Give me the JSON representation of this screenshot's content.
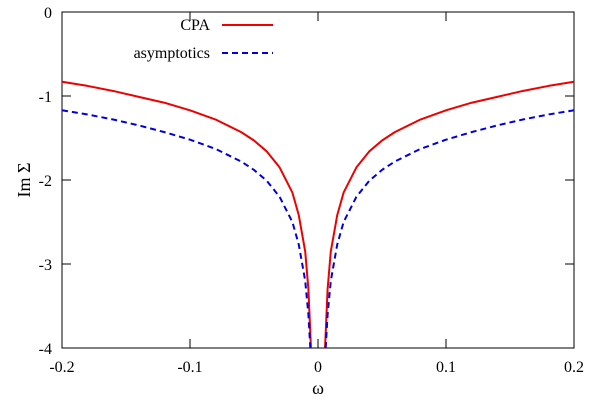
{
  "chart_data": {
    "type": "line",
    "xlabel": "ω",
    "ylabel": "Im Σ",
    "xlim": [
      -0.2,
      0.2
    ],
    "ylim": [
      -4,
      0
    ],
    "xticks": [
      -0.2,
      -0.1,
      0,
      0.1,
      0.2
    ],
    "xtick_labels": [
      "-0.2",
      "-0.1",
      "0",
      "0.1",
      "0.2"
    ],
    "yticks": [
      0,
      -1,
      -2,
      -3,
      -4
    ],
    "ytick_labels": [
      "0",
      "-1",
      "-2",
      "-3",
      "-4"
    ],
    "grid": false,
    "legend_position": "top-center",
    "series": [
      {
        "name": "CPA",
        "color": "#ee0000",
        "dash": "solid",
        "x": [
          -0.2,
          -0.18,
          -0.16,
          -0.14,
          -0.12,
          -0.1,
          -0.08,
          -0.06,
          -0.05,
          -0.04,
          -0.03,
          -0.02,
          -0.015,
          -0.01,
          -0.0075,
          -0.0055,
          0.0055,
          0.0075,
          0.01,
          0.015,
          0.02,
          0.03,
          0.04,
          0.05,
          0.06,
          0.08,
          0.1,
          0.12,
          0.14,
          0.16,
          0.18,
          0.2
        ],
        "y": [
          -0.83,
          -0.88,
          -0.94,
          -1.01,
          -1.08,
          -1.17,
          -1.28,
          -1.43,
          -1.53,
          -1.66,
          -1.85,
          -2.15,
          -2.42,
          -2.85,
          -3.3,
          -4.0,
          -4.0,
          -3.3,
          -2.85,
          -2.42,
          -2.15,
          -1.85,
          -1.66,
          -1.53,
          -1.43,
          -1.28,
          -1.17,
          -1.08,
          -1.01,
          -0.94,
          -0.88,
          -0.83
        ]
      },
      {
        "name": "asymptotics",
        "color": "#0000dd",
        "dash": "dashed",
        "x": [
          -0.2,
          -0.18,
          -0.16,
          -0.14,
          -0.12,
          -0.1,
          -0.08,
          -0.06,
          -0.05,
          -0.04,
          -0.03,
          -0.02,
          -0.015,
          -0.01,
          -0.0075,
          -0.006,
          0.006,
          0.0075,
          0.01,
          0.015,
          0.02,
          0.03,
          0.04,
          0.05,
          0.06,
          0.08,
          0.1,
          0.12,
          0.14,
          0.16,
          0.18,
          0.2
        ],
        "y": [
          -1.17,
          -1.22,
          -1.28,
          -1.35,
          -1.43,
          -1.52,
          -1.63,
          -1.78,
          -1.88,
          -2.01,
          -2.2,
          -2.5,
          -2.77,
          -3.2,
          -3.6,
          -4.0,
          -4.0,
          -3.6,
          -3.2,
          -2.77,
          -2.5,
          -2.2,
          -2.01,
          -1.88,
          -1.78,
          -1.63,
          -1.52,
          -1.43,
          -1.35,
          -1.28,
          -1.22,
          -1.17
        ]
      }
    ]
  }
}
